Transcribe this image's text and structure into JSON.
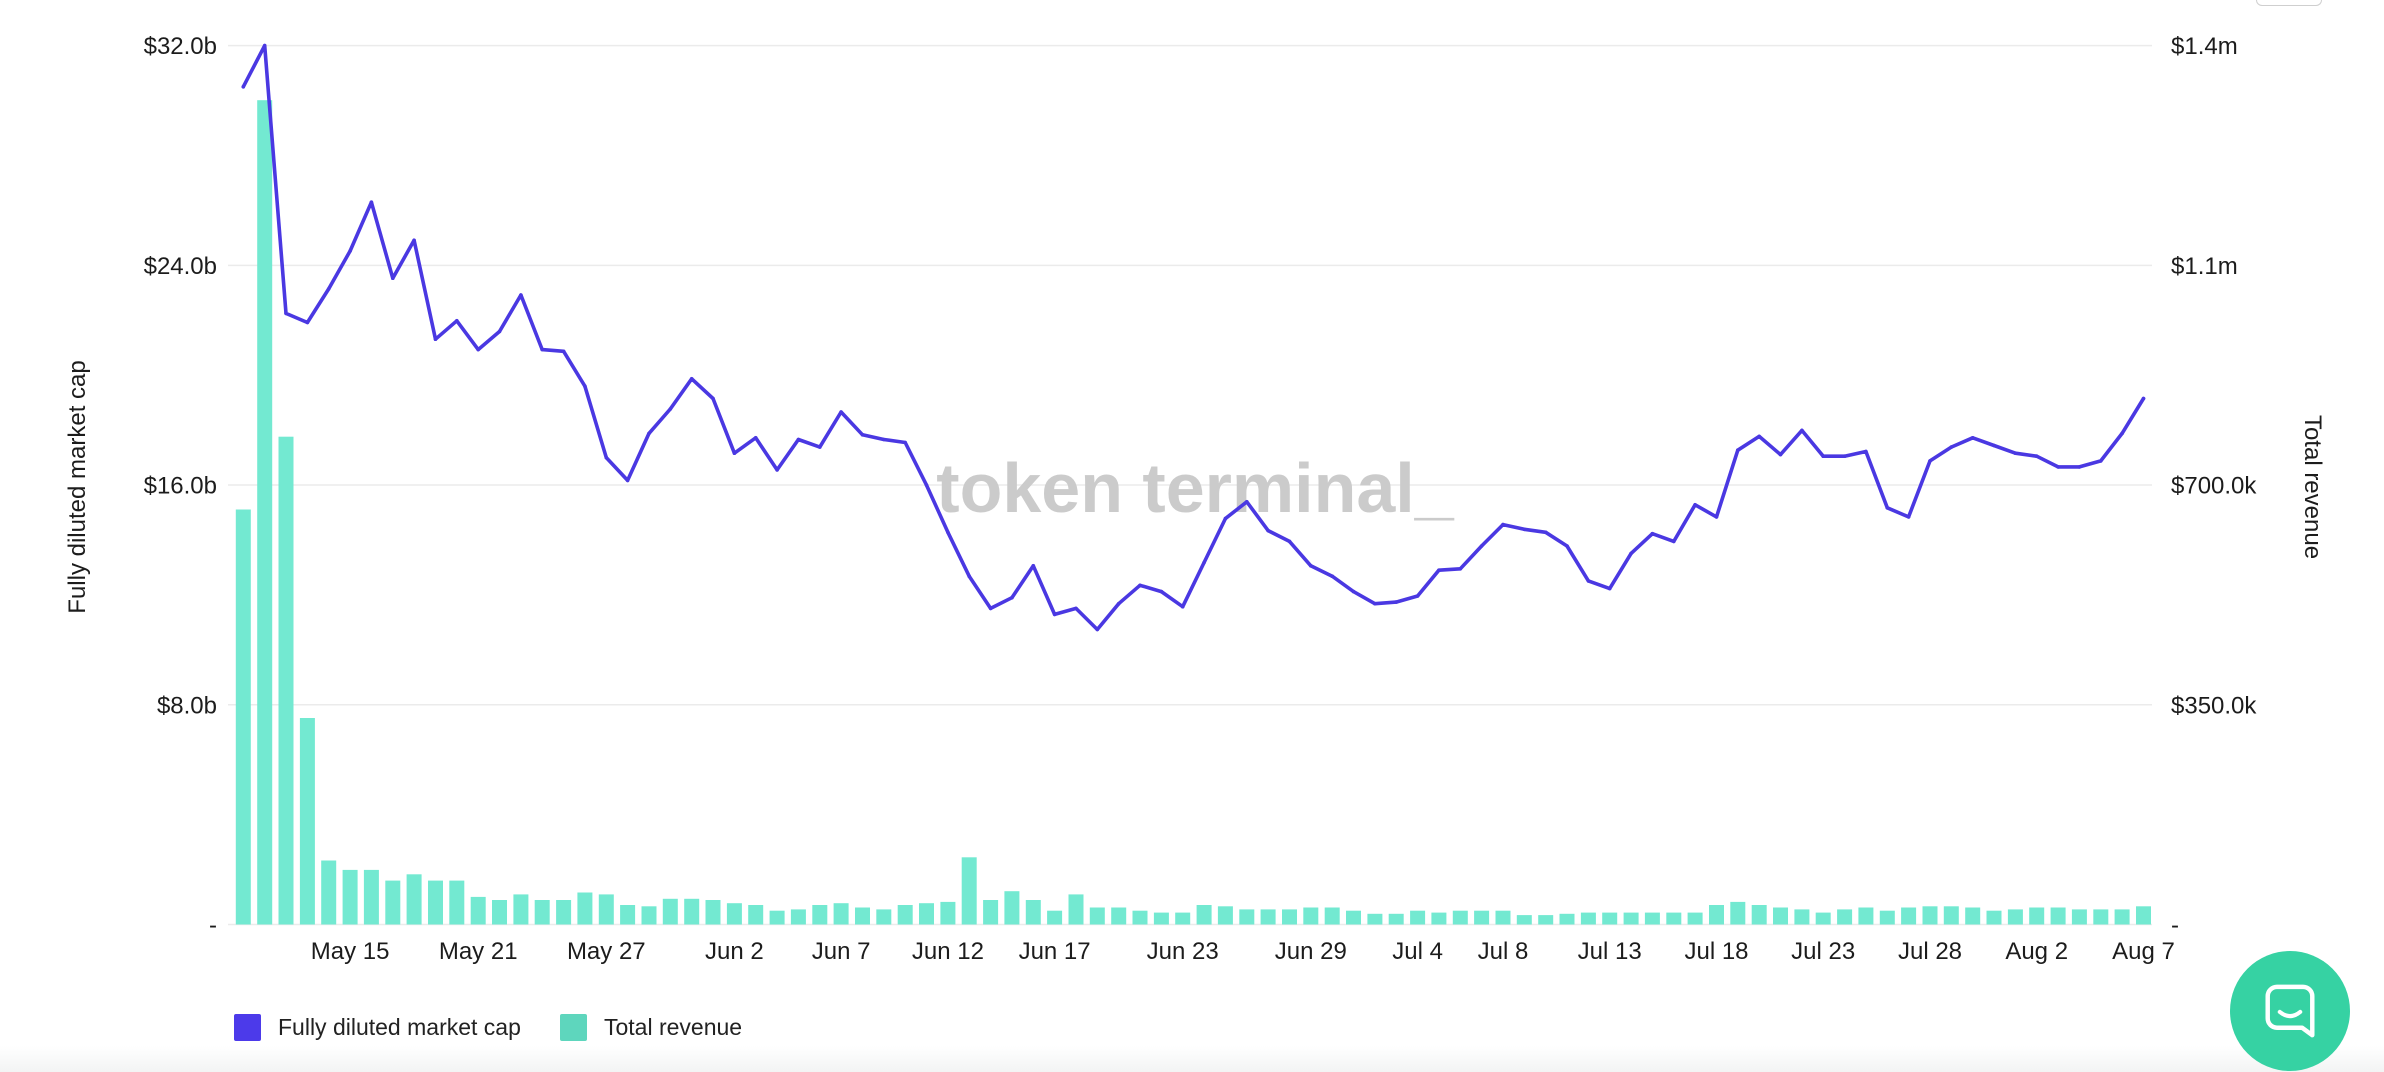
{
  "chart_data": {
    "type": "line",
    "ylabel": "Fully diluted market cap",
    "y2label": "Total revenue",
    "xlim": [
      0,
      89
    ],
    "ylim": [
      0,
      32
    ],
    "y2lim": [
      0,
      1400
    ],
    "grid": true,
    "legend": "bottom-left",
    "x_ticks": [
      {
        "day": 5,
        "label": "May 15"
      },
      {
        "day": 11,
        "label": "May 21"
      },
      {
        "day": 17,
        "label": "May 27"
      },
      {
        "day": 23,
        "label": "Jun 2"
      },
      {
        "day": 28,
        "label": "Jun 7"
      },
      {
        "day": 33,
        "label": "Jun 12"
      },
      {
        "day": 38,
        "label": "Jun 17"
      },
      {
        "day": 44,
        "label": "Jun 23"
      },
      {
        "day": 50,
        "label": "Jun 29"
      },
      {
        "day": 55,
        "label": "Jul 4"
      },
      {
        "day": 59,
        "label": "Jul 8"
      },
      {
        "day": 64,
        "label": "Jul 13"
      },
      {
        "day": 69,
        "label": "Jul 18"
      },
      {
        "day": 74,
        "label": "Jul 23"
      },
      {
        "day": 79,
        "label": "Jul 28"
      },
      {
        "day": 84,
        "label": "Aug 2"
      },
      {
        "day": 89,
        "label": "Aug 7"
      }
    ],
    "y_ticks": [
      {
        "value": 0,
        "label": "-"
      },
      {
        "value": 8,
        "label": "$8.0b"
      },
      {
        "value": 16,
        "label": "$16.0b"
      },
      {
        "value": 24,
        "label": "$24.0b"
      },
      {
        "value": 32,
        "label": "$32.0b"
      }
    ],
    "y2_ticks": [
      {
        "value": 0,
        "label": "-"
      },
      {
        "value": 350,
        "label": "$350.0k"
      },
      {
        "value": 700,
        "label": "$700.0k"
      },
      {
        "value": 1050,
        "label": "$1.1m"
      },
      {
        "value": 1400,
        "label": "$1.4m"
      }
    ],
    "x": [
      0,
      1,
      2,
      3,
      4,
      5,
      6,
      7,
      8,
      9,
      10,
      11,
      12,
      13,
      14,
      15,
      16,
      17,
      18,
      19,
      20,
      21,
      22,
      23,
      24,
      25,
      26,
      27,
      28,
      29,
      30,
      31,
      32,
      33,
      34,
      35,
      36,
      37,
      38,
      39,
      40,
      41,
      42,
      43,
      44,
      45,
      46,
      47,
      48,
      49,
      50,
      51,
      52,
      53,
      54,
      55,
      56,
      57,
      58,
      59,
      60,
      61,
      62,
      63,
      64,
      65,
      66,
      67,
      68,
      69,
      70,
      71,
      72,
      73,
      74,
      75,
      76,
      77,
      78,
      79,
      80,
      81,
      82,
      83,
      84,
      85,
      86,
      87,
      88,
      89
    ],
    "series": [
      {
        "name": "Fully diluted market cap",
        "type": "line",
        "values_usd_billions": [
          30.5,
          32.0,
          22.25,
          21.92,
          23.14,
          24.52,
          26.3,
          23.53,
          24.91,
          21.31,
          21.98,
          20.93,
          21.59,
          22.92,
          20.93,
          20.87,
          19.6,
          17.0,
          16.17,
          17.88,
          18.77,
          19.87,
          19.15,
          17.16,
          17.72,
          16.55,
          17.66,
          17.38,
          18.66,
          17.83,
          17.66,
          17.55,
          16.0,
          14.28,
          12.68,
          11.51,
          11.9,
          13.06,
          11.29,
          11.51,
          10.74,
          11.68,
          12.35,
          12.12,
          11.57,
          13.18,
          14.78,
          15.39,
          14.34,
          13.95,
          13.06,
          12.68,
          12.12,
          11.68,
          11.74,
          11.96,
          12.9,
          12.95,
          13.78,
          14.56,
          14.39,
          14.28,
          13.78,
          12.51,
          12.23,
          13.51,
          14.23,
          13.95,
          15.28,
          14.84,
          17.27,
          17.77,
          17.11,
          17.99,
          17.05,
          17.05,
          17.22,
          15.17,
          14.84,
          16.88,
          17.38,
          17.72,
          17.44,
          17.16,
          17.05,
          16.66,
          16.66,
          16.88,
          17.88,
          19.15
        ]
      },
      {
        "name": "Total revenue",
        "type": "bar",
        "values_usd_thousands": [
          661,
          1313,
          777,
          329,
          102,
          87,
          87,
          70,
          80,
          70,
          70,
          44,
          39,
          48,
          39,
          39,
          51,
          48,
          31,
          29,
          41,
          41,
          39,
          34,
          31,
          22,
          24,
          31,
          34,
          27,
          24,
          31,
          34,
          36,
          107,
          39,
          53,
          39,
          22,
          48,
          27,
          27,
          22,
          19,
          19,
          31,
          29,
          24,
          24,
          24,
          27,
          27,
          22,
          17,
          17,
          22,
          19,
          22,
          22,
          22,
          15,
          15,
          17,
          19,
          19,
          19,
          19,
          19,
          19,
          31,
          36,
          31,
          27,
          24,
          19,
          24,
          27,
          22,
          27,
          29,
          29,
          27,
          22,
          24,
          27,
          27,
          24,
          24,
          24,
          29
        ]
      }
    ]
  },
  "watermark": "token terminal_",
  "colors": {
    "line": "#4a38e2",
    "bars": "#73e9d1",
    "legend_line": "#4c3aea",
    "legend_bars": "#5ed6bd",
    "chat_button": "#36d2a3"
  },
  "chat_widget": {
    "icon": "chat-bubble-icon"
  }
}
